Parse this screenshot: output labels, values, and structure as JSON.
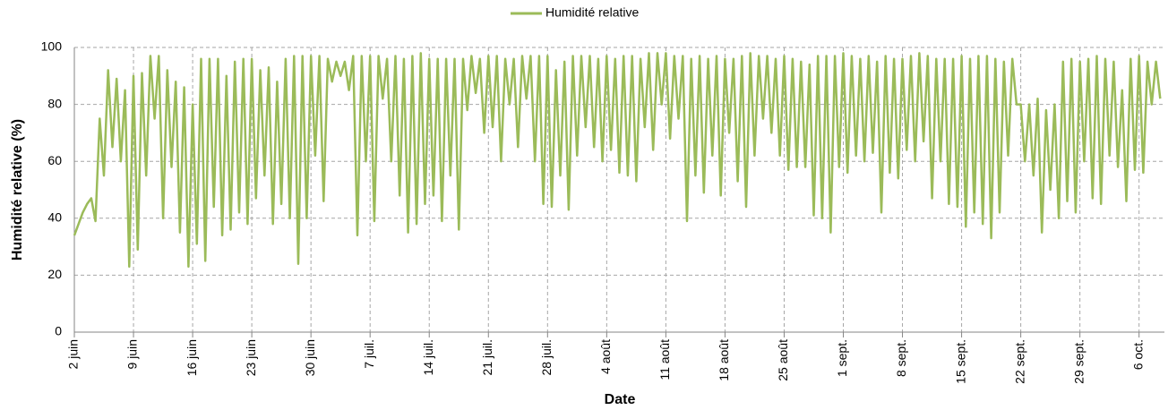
{
  "chart_data": {
    "type": "line",
    "y_label": "Humidité relative (%)",
    "x_label": "Date",
    "legend": "top",
    "grid": true,
    "xlim": [
      0,
      129
    ],
    "ylim": [
      0,
      100
    ],
    "yticks": [
      0,
      20,
      40,
      60,
      80,
      100
    ],
    "xticks": [
      {
        "value": 0,
        "label": "2 juin"
      },
      {
        "value": 7,
        "label": "9 juin"
      },
      {
        "value": 14,
        "label": "16 juin"
      },
      {
        "value": 21,
        "label": "23 juin"
      },
      {
        "value": 28,
        "label": "30 juin"
      },
      {
        "value": 35,
        "label": "7 juil."
      },
      {
        "value": 42,
        "label": "14 juil."
      },
      {
        "value": 49,
        "label": "21 juil."
      },
      {
        "value": 56,
        "label": "28 juil."
      },
      {
        "value": 63,
        "label": "4 août"
      },
      {
        "value": 70,
        "label": "11 août"
      },
      {
        "value": 77,
        "label": "18 août"
      },
      {
        "value": 84,
        "label": "25 août"
      },
      {
        "value": 91,
        "label": "1 sept."
      },
      {
        "value": 98,
        "label": "8 sept."
      },
      {
        "value": 105,
        "label": "15 sept."
      },
      {
        "value": 112,
        "label": "22 sept."
      },
      {
        "value": 119,
        "label": "29 sept."
      },
      {
        "value": 126,
        "label": "6 oct."
      }
    ],
    "x": [
      0,
      0.5,
      1,
      1.5,
      2,
      2.5,
      3,
      3.5,
      4,
      4.5,
      5,
      5.5,
      6,
      6.5,
      7,
      7.5,
      8,
      8.5,
      9,
      9.5,
      10,
      10.5,
      11,
      11.5,
      12,
      12.5,
      13,
      13.5,
      14,
      14.5,
      15,
      15.5,
      16,
      16.5,
      17,
      17.5,
      18,
      18.5,
      19,
      19.5,
      20,
      20.5,
      21,
      21.5,
      22,
      22.5,
      23,
      23.5,
      24,
      24.5,
      25,
      25.5,
      26,
      26.5,
      27,
      27.5,
      28,
      28.5,
      29,
      29.5,
      30,
      30.5,
      31,
      31.5,
      32,
      32.5,
      33,
      33.5,
      34,
      34.5,
      35,
      35.5,
      36,
      36.5,
      37,
      37.5,
      38,
      38.5,
      39,
      39.5,
      40,
      40.5,
      41,
      41.5,
      42,
      42.5,
      43,
      43.5,
      44,
      44.5,
      45,
      45.5,
      46,
      46.5,
      47,
      47.5,
      48,
      48.5,
      49,
      49.5,
      50,
      50.5,
      51,
      51.5,
      52,
      52.5,
      53,
      53.5,
      54,
      54.5,
      55,
      55.5,
      56,
      56.5,
      57,
      57.5,
      58,
      58.5,
      59,
      59.5,
      60,
      60.5,
      61,
      61.5,
      62,
      62.5,
      63,
      63.5,
      64,
      64.5,
      65,
      65.5,
      66,
      66.5,
      67,
      67.5,
      68,
      68.5,
      69,
      69.5,
      70,
      70.5,
      71,
      71.5,
      72,
      72.5,
      73,
      73.5,
      74,
      74.5,
      75,
      75.5,
      76,
      76.5,
      77,
      77.5,
      78,
      78.5,
      79,
      79.5,
      80,
      80.5,
      81,
      81.5,
      82,
      82.5,
      83,
      83.5,
      84,
      84.5,
      85,
      85.5,
      86,
      86.5,
      87,
      87.5,
      88,
      88.5,
      89,
      89.5,
      90,
      90.5,
      91,
      91.5,
      92,
      92.5,
      93,
      93.5,
      94,
      94.5,
      95,
      95.5,
      96,
      96.5,
      97,
      97.5,
      98,
      98.5,
      99,
      99.5,
      100,
      100.5,
      101,
      101.5,
      102,
      102.5,
      103,
      103.5,
      104,
      104.5,
      105,
      105.5,
      106,
      106.5,
      107,
      107.5,
      108,
      108.5,
      109,
      109.5,
      110,
      110.5,
      111,
      111.5,
      112,
      112.5,
      113,
      113.5,
      114,
      114.5,
      115,
      115.5,
      116,
      116.5,
      117,
      117.5,
      118,
      118.5,
      119,
      119.5,
      120,
      120.5,
      121,
      121.5,
      122,
      122.5,
      123,
      123.5,
      124,
      124.5,
      125,
      125.5,
      126,
      126.5,
      127,
      127.5,
      128,
      128.5
    ],
    "series": [
      {
        "name": "Humidité relative",
        "color": "#9bbb59",
        "values": [
          34,
          38,
          42,
          45,
          47,
          39,
          75,
          55,
          92,
          65,
          89,
          60,
          85,
          23,
          90,
          29,
          91,
          55,
          97,
          75,
          97,
          40,
          92,
          58,
          88,
          35,
          86,
          23,
          80,
          31,
          96,
          25,
          96,
          44,
          96,
          34,
          90,
          36,
          95,
          42,
          96,
          38,
          96,
          47,
          92,
          55,
          93,
          38,
          88,
          45,
          96,
          40,
          97,
          24,
          97,
          40,
          97,
          62,
          97,
          46,
          96,
          88,
          95,
          90,
          95,
          85,
          97,
          34,
          97,
          60,
          97,
          39,
          97,
          82,
          96,
          60,
          97,
          48,
          96,
          35,
          97,
          38,
          98,
          45,
          96,
          48,
          96,
          39,
          96,
          55,
          96,
          36,
          96,
          78,
          97,
          84,
          96,
          70,
          97,
          72,
          97,
          60,
          96,
          80,
          96,
          65,
          97,
          82,
          97,
          60,
          97,
          45,
          97,
          44,
          92,
          55,
          95,
          43,
          97,
          62,
          97,
          72,
          97,
          65,
          96,
          60,
          97,
          64,
          96,
          56,
          97,
          55,
          97,
          53,
          96,
          72,
          98,
          64,
          98,
          80,
          98,
          68,
          97,
          75,
          97,
          39,
          96,
          55,
          97,
          49,
          96,
          62,
          97,
          48,
          96,
          70,
          96,
          53,
          97,
          44,
          98,
          62,
          97,
          75,
          97,
          70,
          96,
          62,
          97,
          57,
          96,
          58,
          95,
          58,
          94,
          41,
          97,
          40,
          97,
          35,
          97,
          58,
          98,
          56,
          97,
          62,
          96,
          60,
          97,
          63,
          95,
          42,
          97,
          56,
          96,
          54,
          96,
          64,
          97,
          60,
          98,
          67,
          97,
          47,
          96,
          60,
          96,
          45,
          96,
          44,
          97,
          37,
          96,
          42,
          97,
          38,
          97,
          33,
          96,
          42,
          95,
          62,
          96,
          80,
          80,
          60,
          80,
          55,
          82,
          35,
          78,
          50,
          80,
          40,
          95,
          46,
          96,
          42,
          95,
          60,
          96,
          47,
          97,
          45,
          96,
          62,
          95,
          58,
          85,
          46,
          96,
          57,
          97,
          56,
          95,
          80,
          95,
          82
        ]
      }
    ]
  }
}
